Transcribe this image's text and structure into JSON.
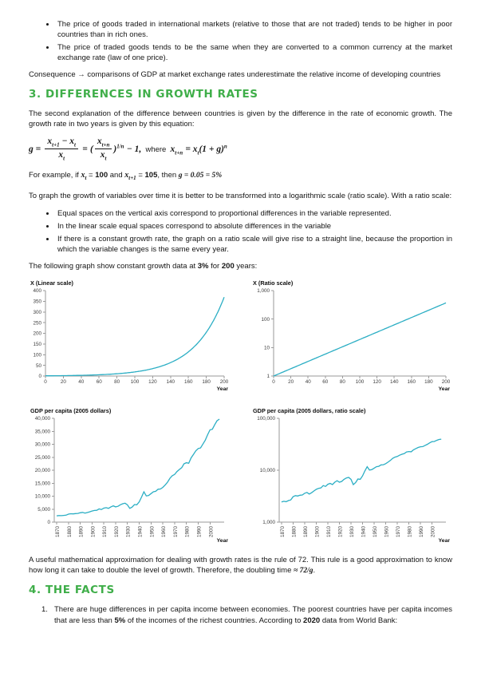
{
  "colors": {
    "heading_green": "#3FAE49",
    "chart_line": "#2BAEC4"
  },
  "page": {
    "top_bullets": [
      "The price of goods traded in international markets (relative to those that are not traded) tends to be higher in poor countries than in rich ones.",
      "The price of traded goods tends to be the same when they are converted to a common currency at the market exchange rate (law of one price)."
    ],
    "consequence": "Consequence → comparisons of GDP at market exchange rates underestimate the relative income of developing countries",
    "heading3": "3. DIFFERENCES IN GROWTH RATES",
    "growth_intro": "The second explanation of the difference between countries is given by the difference in the rate of economic growth. The growth rate in two years is given by this equation:",
    "equation": {
      "lead": "g =",
      "f1n_a": "x",
      "f1n_as": "t+1",
      "f1n_b": " − x",
      "f1n_bs": "t",
      "f1d_a": "x",
      "f1d_as": "t",
      "eq2": "=",
      "open": "(",
      "f2n_a": "x",
      "f2n_as": "t+n",
      "f2d_a": "x",
      "f2d_as": "t",
      "close": ")",
      "sup": "1/n",
      "minus": "− 1,",
      "where": "where",
      "w1": "x",
      "w1s": "t+n",
      "w2": "= x",
      "w2s": "t",
      "w3": "(1 + g)",
      "w3sup": "n"
    },
    "example": {
      "p1": "For example, if ",
      "x1": "x",
      "x1s": "t",
      "eq1": " = ",
      "b1": "100",
      "p2": " and ",
      "x2": "x",
      "x2s": "t+1",
      "eq2": " = ",
      "b2": "105",
      "p3": ", then ",
      "b3": "g = 0.05 = 5%"
    },
    "ratio_intro": "To graph the growth of variables over time it is better to be transformed into a logarithmic scale (ratio scale). With a ratio scale:",
    "ratio_bullets": [
      "Equal spaces on the vertical axis correspond to proportional differences in the variable represented.",
      "In the linear scale equal spaces correspond to absolute differences in the variable",
      "If there is a constant growth rate, the graph on a ratio scale will give rise to a straight line, because the proportion in which the variable changes is the same every year."
    ],
    "graph_intro": {
      "p1": "The following graph show constant growth data at ",
      "b1": "3%",
      "p2": " for ",
      "b2": "200",
      "p3": " years:"
    },
    "rule72": {
      "p1": "A useful mathematical approximation for dealing with growth rates is the rule of 72. This rule is a good approximation to know how long it can take to double the level of growth. Therefore, the doubling time ",
      "b1": "≈ 72/g",
      "p2": "."
    },
    "heading4": "4. THE FACTS",
    "facts_item1": {
      "num": "1.",
      "p1": "There are huge differences in per capita income between economies. The poorest countries have per capita incomes that are less than ",
      "b1": "5%",
      "p2": " of the incomes of the richest countries. According to ",
      "b2": "2020",
      "p3": " data from World Bank:"
    }
  },
  "chart_data": [
    {
      "type": "line",
      "id": "x-linear-scale",
      "title": "X (Linear scale)",
      "xlabel": "Year",
      "y_scale": "linear",
      "x_range": [
        0,
        200
      ],
      "y_range": [
        0,
        400
      ],
      "x_ticks": [
        0,
        20,
        40,
        60,
        80,
        100,
        120,
        140,
        160,
        180,
        200
      ],
      "x_tick_labels": [
        "0",
        "20",
        "40",
        "60",
        "80",
        "100",
        "120",
        "140",
        "160",
        "180",
        "200"
      ],
      "y_ticks": [
        0,
        50,
        100,
        150,
        200,
        250,
        300,
        350,
        400
      ],
      "y_tick_labels": [
        "0",
        "50",
        "100",
        "150",
        "200",
        "250",
        "300",
        "350",
        "400"
      ],
      "rotate_x_labels": false,
      "line_color": "#2BAEC4",
      "generator": {
        "start": 1,
        "growth_rate": 0.03,
        "t_max": 200
      },
      "key_values": [
        [
          0,
          1
        ],
        [
          50,
          4.38
        ],
        [
          100,
          19.22
        ],
        [
          150,
          84.25
        ],
        [
          200,
          369.36
        ]
      ]
    },
    {
      "type": "line",
      "id": "x-ratio-scale",
      "title": "X (Ratio scale)",
      "xlabel": "Year",
      "y_scale": "log",
      "x_range": [
        0,
        200
      ],
      "y_range": [
        1,
        1000
      ],
      "x_ticks": [
        0,
        20,
        40,
        60,
        80,
        100,
        120,
        140,
        160,
        180,
        200
      ],
      "x_tick_labels": [
        "0",
        "20",
        "40",
        "60",
        "80",
        "100",
        "120",
        "140",
        "160",
        "180",
        "200"
      ],
      "y_ticks": [
        1,
        10,
        100,
        1000
      ],
      "y_tick_labels": [
        "1",
        "10",
        "100",
        "1,000"
      ],
      "rotate_x_labels": false,
      "line_color": "#2BAEC4",
      "generator": {
        "start": 1,
        "growth_rate": 0.03,
        "t_max": 200
      },
      "key_values": [
        [
          0,
          1
        ],
        [
          50,
          4.38
        ],
        [
          100,
          19.22
        ],
        [
          150,
          84.25
        ],
        [
          200,
          369.36
        ]
      ]
    },
    {
      "type": "line",
      "id": "gdp-per-capita-linear",
      "title": "GDP per capita (2005 dollars)",
      "xlabel": "Year",
      "y_scale": "linear",
      "x_range": [
        1868,
        2012
      ],
      "y_range": [
        0,
        40000
      ],
      "x_ticks": [
        1870,
        1880,
        1890,
        1900,
        1910,
        1920,
        1930,
        1940,
        1950,
        1960,
        1970,
        1980,
        1990,
        2000
      ],
      "x_tick_labels": [
        "1870",
        "1880",
        "1890",
        "1900",
        "1910",
        "1920",
        "1930",
        "1940",
        "1950",
        "1960",
        "1970",
        "1980",
        "1990",
        "2000"
      ],
      "y_ticks": [
        0,
        5000,
        10000,
        15000,
        20000,
        25000,
        30000,
        35000,
        40000
      ],
      "y_tick_labels": [
        "0",
        "5,000",
        "10,000",
        "15,000",
        "20,000",
        "25,000",
        "30,000",
        "35,000",
        "40,000"
      ],
      "rotate_x_labels": true,
      "line_color": "#2BAEC4",
      "points": [
        [
          1870,
          2445
        ],
        [
          1872,
          2520
        ],
        [
          1874,
          2480
        ],
        [
          1876,
          2600
        ],
        [
          1878,
          2680
        ],
        [
          1880,
          3080
        ],
        [
          1882,
          3240
        ],
        [
          1884,
          3180
        ],
        [
          1886,
          3300
        ],
        [
          1888,
          3340
        ],
        [
          1890,
          3590
        ],
        [
          1892,
          3740
        ],
        [
          1894,
          3480
        ],
        [
          1896,
          3680
        ],
        [
          1898,
          3980
        ],
        [
          1900,
          4280
        ],
        [
          1902,
          4480
        ],
        [
          1904,
          4550
        ],
        [
          1906,
          5070
        ],
        [
          1908,
          4870
        ],
        [
          1910,
          5370
        ],
        [
          1912,
          5570
        ],
        [
          1914,
          5280
        ],
        [
          1916,
          5880
        ],
        [
          1918,
          6280
        ],
        [
          1920,
          5880
        ],
        [
          1922,
          6080
        ],
        [
          1924,
          6680
        ],
        [
          1926,
          7080
        ],
        [
          1928,
          7280
        ],
        [
          1930,
          6680
        ],
        [
          1932,
          5280
        ],
        [
          1934,
          5780
        ],
        [
          1936,
          6780
        ],
        [
          1938,
          6680
        ],
        [
          1940,
          7780
        ],
        [
          1942,
          9680
        ],
        [
          1944,
          11680
        ],
        [
          1946,
          10080
        ],
        [
          1948,
          10280
        ],
        [
          1950,
          10980
        ],
        [
          1952,
          11680
        ],
        [
          1954,
          11880
        ],
        [
          1956,
          12680
        ],
        [
          1958,
          12780
        ],
        [
          1960,
          13380
        ],
        [
          1962,
          14280
        ],
        [
          1964,
          15380
        ],
        [
          1966,
          16880
        ],
        [
          1968,
          17880
        ],
        [
          1970,
          18380
        ],
        [
          1972,
          19480
        ],
        [
          1974,
          20280
        ],
        [
          1976,
          20980
        ],
        [
          1978,
          22480
        ],
        [
          1980,
          22880
        ],
        [
          1982,
          22680
        ],
        [
          1984,
          24780
        ],
        [
          1986,
          26080
        ],
        [
          1988,
          27480
        ],
        [
          1990,
          28380
        ],
        [
          1992,
          28580
        ],
        [
          1994,
          30080
        ],
        [
          1996,
          31580
        ],
        [
          1998,
          33680
        ],
        [
          2000,
          35580
        ],
        [
          2002,
          35780
        ],
        [
          2004,
          37580
        ],
        [
          2006,
          39080
        ],
        [
          2008,
          39680
        ]
      ]
    },
    {
      "type": "line",
      "id": "gdp-per-capita-ratio",
      "title": "GDP per capita (2005 dollars, ratio scale)",
      "xlabel": "Year",
      "y_scale": "log",
      "x_range": [
        1868,
        2012
      ],
      "y_range": [
        1000,
        100000
      ],
      "x_ticks": [
        1870,
        1880,
        1890,
        1900,
        1910,
        1920,
        1930,
        1940,
        1950,
        1960,
        1970,
        1980,
        1990,
        2000
      ],
      "x_tick_labels": [
        "1870",
        "1880",
        "1890",
        "1900",
        "1910",
        "1920",
        "1930",
        "1940",
        "1950",
        "1960",
        "1970",
        "1980",
        "1990",
        "2000"
      ],
      "y_ticks": [
        1000,
        10000,
        100000
      ],
      "y_tick_labels": [
        "1,000",
        "10,000",
        "100,000"
      ],
      "rotate_x_labels": true,
      "line_color": "#2BAEC4",
      "points_ref": "chart_data.2.points"
    }
  ]
}
